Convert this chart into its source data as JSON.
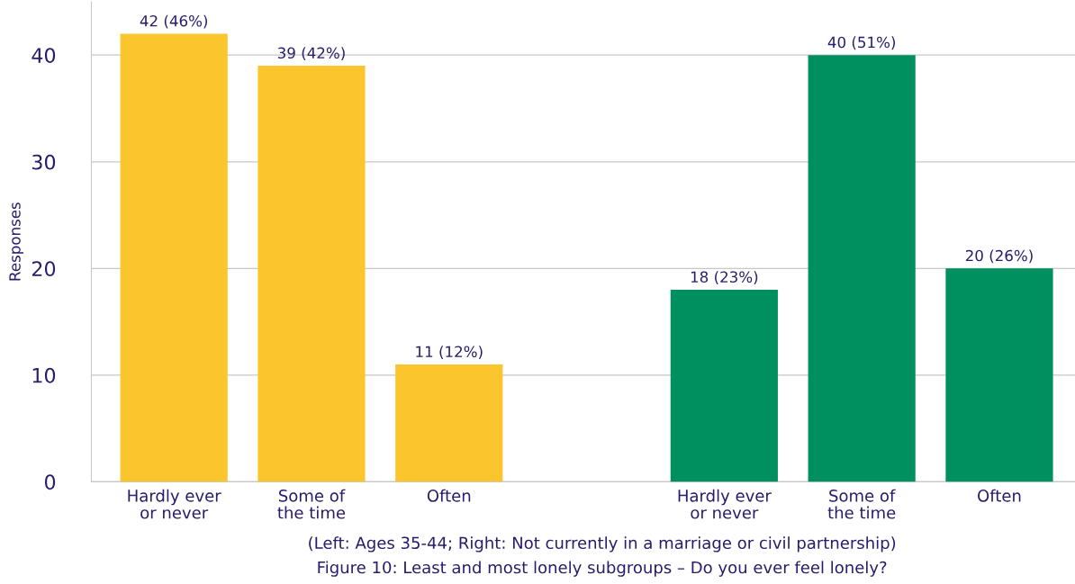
{
  "chart_data": {
    "type": "bar",
    "ylabel": "Responses",
    "categories": [
      "Hardly ever\nor never",
      "Some of\nthe time",
      "Often",
      null,
      "Hardly ever\nor never",
      "Some of\nthe time",
      "Often"
    ],
    "values": [
      42,
      39,
      11,
      null,
      18,
      40,
      20
    ],
    "colors": [
      "#fbc52d",
      "#fbc52d",
      "#fbc52d",
      "#fbc52d",
      "#00905f",
      "#00905f",
      "#00905f"
    ],
    "value_labels": [
      "42 (46%)",
      "39 (42%)",
      "11 (12%)",
      null,
      "18 (23%)",
      "40 (51%)",
      "20 (26%)"
    ],
    "ylim": [
      0,
      45
    ],
    "yticks": [
      0,
      10,
      20,
      30,
      40
    ],
    "grid": "y",
    "annotations": [
      "(Left: Ages 35-44; Right: Not currently in a marriage or civil partnership)",
      "Figure 10: Least and most lonely subgroups – Do you ever feel lonely?"
    ]
  }
}
